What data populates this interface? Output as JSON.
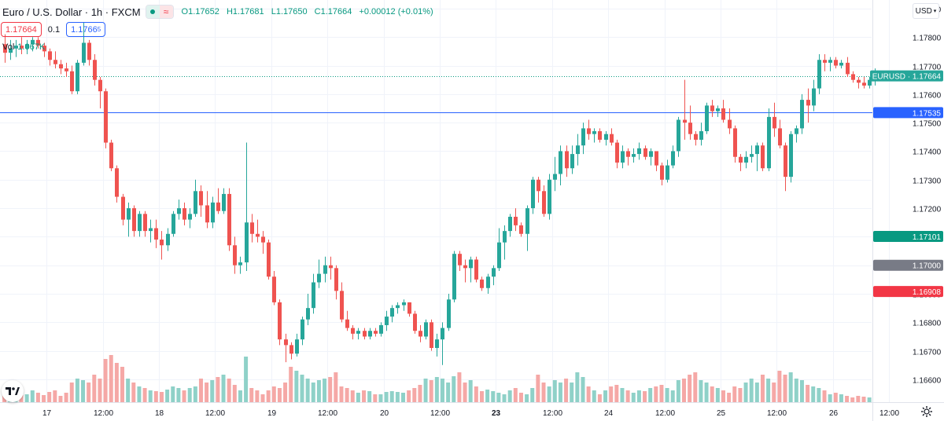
{
  "header": {
    "title": "Euro / U.S. Dollar · 1h · FXCM",
    "ohlc": {
      "open": "O1.17652",
      "high": "H1.17681",
      "low": "L1.17650",
      "close": "C1.17664",
      "change": "+0.00012 (+0.01%)"
    },
    "sell_price": "1.17664",
    "spread": "0.1",
    "buy_price_main": "1.1766",
    "buy_price_sup": "5",
    "volume_label": "Vol",
    "volume_value": "1.067K",
    "currency": "USD"
  },
  "colors": {
    "up": "#26a69a",
    "down": "#ef5350",
    "up_volume": "#8fd1c8",
    "down_volume": "#f5a8a6",
    "horizontal_line": "#2962ff",
    "current_price_line": "#089981",
    "grid": "#f0f3fa"
  },
  "price_labels": {
    "symbol_tag": "EURUSD · 1.17664",
    "line_price": "1.17535",
    "green_tag": "1.17101",
    "grey_tag": "1.17000",
    "red_tag": "1.16908"
  },
  "chart_data": {
    "type": "candlestick",
    "symbol": "EURUSD",
    "interval": "1h",
    "y_axis_ticks": [
      "1.17900",
      "1.17800",
      "1.17700",
      "1.17600",
      "1.17500",
      "1.17400",
      "1.17300",
      "1.17200",
      "1.17100",
      "1.17000",
      "1.16900",
      "1.16800",
      "1.16700",
      "1.16600"
    ],
    "ylim": [
      1.1652,
      1.1793
    ],
    "x_axis_ticks": [
      "17",
      "12:00",
      "18",
      "12:00",
      "19",
      "12:00",
      "20",
      "12:00",
      "23",
      "12:00",
      "24",
      "12:00",
      "25",
      "12:00",
      "26",
      "12:00"
    ],
    "x_tick_bar_index": [
      8,
      18,
      28,
      38,
      48,
      58,
      68,
      78,
      88,
      98,
      108,
      118,
      128,
      138,
      148,
      158
    ],
    "horizontal_line": 1.17535,
    "last_price": 1.17664,
    "candles_ohlc": [
      [
        1.17775,
        1.1781,
        1.1771,
        1.17745
      ],
      [
        1.17745,
        1.1779,
        1.1772,
        1.1776
      ],
      [
        1.1776,
        1.1779,
        1.1773,
        1.1777
      ],
      [
        1.1777,
        1.178,
        1.1774,
        1.1776
      ],
      [
        1.1776,
        1.1779,
        1.1774,
        1.17775
      ],
      [
        1.17775,
        1.178,
        1.1775,
        1.1779
      ],
      [
        1.1779,
        1.178,
        1.1776,
        1.1777
      ],
      [
        1.1777,
        1.1778,
        1.1773,
        1.1775
      ],
      [
        1.1775,
        1.1776,
        1.177,
        1.1772
      ],
      [
        1.1772,
        1.1775,
        1.1769,
        1.17705
      ],
      [
        1.17705,
        1.1772,
        1.1767,
        1.1769
      ],
      [
        1.1769,
        1.1771,
        1.1766,
        1.1768
      ],
      [
        1.1768,
        1.177,
        1.176,
        1.1761
      ],
      [
        1.1761,
        1.1772,
        1.176,
        1.1771
      ],
      [
        1.1771,
        1.1785,
        1.177,
        1.1778
      ],
      [
        1.1778,
        1.1779,
        1.177,
        1.1772
      ],
      [
        1.1772,
        1.1774,
        1.1763,
        1.1765
      ],
      [
        1.1765,
        1.1766,
        1.1755,
        1.1761
      ],
      [
        1.1761,
        1.1762,
        1.1741,
        1.1743
      ],
      [
        1.1743,
        1.1744,
        1.1733,
        1.1734
      ],
      [
        1.1734,
        1.1735,
        1.1722,
        1.1724
      ],
      [
        1.1724,
        1.1725,
        1.1714,
        1.1716
      ],
      [
        1.1716,
        1.1722,
        1.171,
        1.172
      ],
      [
        1.172,
        1.1721,
        1.171,
        1.1712
      ],
      [
        1.1712,
        1.1719,
        1.171,
        1.1718
      ],
      [
        1.1718,
        1.1719,
        1.171,
        1.1712
      ],
      [
        1.1712,
        1.1716,
        1.1708,
        1.1713
      ],
      [
        1.1713,
        1.1716,
        1.1706,
        1.1709
      ],
      [
        1.1709,
        1.1712,
        1.1702,
        1.1707
      ],
      [
        1.1707,
        1.1713,
        1.1705,
        1.1711
      ],
      [
        1.1711,
        1.1719,
        1.171,
        1.1718
      ],
      [
        1.1718,
        1.1723,
        1.1716,
        1.172
      ],
      [
        1.172,
        1.1722,
        1.1714,
        1.1716
      ],
      [
        1.1716,
        1.172,
        1.1713,
        1.1718
      ],
      [
        1.1718,
        1.173,
        1.1717,
        1.1726
      ],
      [
        1.1726,
        1.1728,
        1.1717,
        1.1721
      ],
      [
        1.1721,
        1.1726,
        1.1713,
        1.1715
      ],
      [
        1.1715,
        1.1724,
        1.1713,
        1.1722
      ],
      [
        1.1722,
        1.1727,
        1.1718,
        1.1719
      ],
      [
        1.1719,
        1.1727,
        1.1718,
        1.1725
      ],
      [
        1.1725,
        1.1727,
        1.1705,
        1.1707
      ],
      [
        1.1707,
        1.171,
        1.1697,
        1.17
      ],
      [
        1.17,
        1.1703,
        1.1697,
        1.1701
      ],
      [
        1.1701,
        1.1743,
        1.1698,
        1.1715
      ],
      [
        1.1715,
        1.1718,
        1.1708,
        1.1711
      ],
      [
        1.1711,
        1.1716,
        1.1708,
        1.171
      ],
      [
        1.171,
        1.1712,
        1.1704,
        1.1708
      ],
      [
        1.1708,
        1.1709,
        1.1695,
        1.1696
      ],
      [
        1.1696,
        1.1698,
        1.1686,
        1.1687
      ],
      [
        1.1687,
        1.1688,
        1.1672,
        1.1674
      ],
      [
        1.1674,
        1.1676,
        1.1666,
        1.1672
      ],
      [
        1.1672,
        1.1673,
        1.1667,
        1.1669
      ],
      [
        1.1669,
        1.1676,
        1.1668,
        1.1674
      ],
      [
        1.1674,
        1.1682,
        1.1672,
        1.1681
      ],
      [
        1.1681,
        1.169,
        1.1679,
        1.1685
      ],
      [
        1.1685,
        1.1697,
        1.1683,
        1.1694
      ],
      [
        1.1694,
        1.1702,
        1.1692,
        1.1697
      ],
      [
        1.1697,
        1.1703,
        1.1694,
        1.17
      ],
      [
        1.17,
        1.1703,
        1.1695,
        1.1699
      ],
      [
        1.1699,
        1.17,
        1.1688,
        1.1691
      ],
      [
        1.1691,
        1.1694,
        1.168,
        1.1681
      ],
      [
        1.1681,
        1.1684,
        1.1677,
        1.1678
      ],
      [
        1.1678,
        1.1679,
        1.1674,
        1.1676
      ],
      [
        1.1676,
        1.1678,
        1.1674,
        1.1677
      ],
      [
        1.1677,
        1.1678,
        1.1674,
        1.1675
      ],
      [
        1.1675,
        1.1678,
        1.1674,
        1.1677
      ],
      [
        1.1677,
        1.1678,
        1.1675,
        1.1676
      ],
      [
        1.1676,
        1.168,
        1.1675,
        1.1679
      ],
      [
        1.1679,
        1.1684,
        1.1677,
        1.1682
      ],
      [
        1.1682,
        1.1686,
        1.168,
        1.1685
      ],
      [
        1.1685,
        1.1687,
        1.1683,
        1.1686
      ],
      [
        1.1686,
        1.1688,
        1.1684,
        1.1687
      ],
      [
        1.1687,
        1.1687,
        1.1682,
        1.1683
      ],
      [
        1.1683,
        1.1684,
        1.1676,
        1.1677
      ],
      [
        1.1677,
        1.1679,
        1.1673,
        1.1675
      ],
      [
        1.1675,
        1.1681,
        1.1674,
        1.168
      ],
      [
        1.168,
        1.1681,
        1.167,
        1.1671
      ],
      [
        1.1671,
        1.1676,
        1.1668,
        1.1674
      ],
      [
        1.1674,
        1.168,
        1.1665,
        1.1678
      ],
      [
        1.1678,
        1.169,
        1.1677,
        1.1688
      ],
      [
        1.1688,
        1.1705,
        1.1687,
        1.1704
      ],
      [
        1.1704,
        1.1705,
        1.1698,
        1.17
      ],
      [
        1.17,
        1.1702,
        1.1694,
        1.1699
      ],
      [
        1.1699,
        1.1703,
        1.1694,
        1.1702
      ],
      [
        1.1702,
        1.1703,
        1.1694,
        1.1695
      ],
      [
        1.1695,
        1.1696,
        1.1691,
        1.1692
      ],
      [
        1.1692,
        1.1697,
        1.169,
        1.1696
      ],
      [
        1.1696,
        1.17,
        1.1693,
        1.1699
      ],
      [
        1.1699,
        1.1713,
        1.1698,
        1.1708
      ],
      [
        1.1708,
        1.1714,
        1.1702,
        1.1712
      ],
      [
        1.1712,
        1.1718,
        1.171,
        1.1717
      ],
      [
        1.1717,
        1.172,
        1.1712,
        1.1714
      ],
      [
        1.1714,
        1.1715,
        1.171,
        1.1711
      ],
      [
        1.1711,
        1.1721,
        1.1705,
        1.172
      ],
      [
        1.172,
        1.1731,
        1.1718,
        1.173
      ],
      [
        1.173,
        1.1731,
        1.1722,
        1.1726
      ],
      [
        1.1726,
        1.1728,
        1.1717,
        1.1718
      ],
      [
        1.1718,
        1.1732,
        1.1716,
        1.173
      ],
      [
        1.173,
        1.1738,
        1.1726,
        1.1732
      ],
      [
        1.1732,
        1.1742,
        1.1728,
        1.174
      ],
      [
        1.174,
        1.1742,
        1.1731,
        1.1734
      ],
      [
        1.1734,
        1.1742,
        1.1732,
        1.1739
      ],
      [
        1.1739,
        1.1746,
        1.1735,
        1.1742
      ],
      [
        1.1742,
        1.175,
        1.1739,
        1.1748
      ],
      [
        1.1748,
        1.1751,
        1.1744,
        1.1746
      ],
      [
        1.1746,
        1.1748,
        1.1743,
        1.1747
      ],
      [
        1.1747,
        1.1748,
        1.1743,
        1.1744
      ],
      [
        1.1744,
        1.1747,
        1.1742,
        1.1746
      ],
      [
        1.1746,
        1.1748,
        1.1742,
        1.1743
      ],
      [
        1.1743,
        1.1744,
        1.1734,
        1.1736
      ],
      [
        1.1736,
        1.1742,
        1.1734,
        1.174
      ],
      [
        1.174,
        1.1741,
        1.1735,
        1.1738
      ],
      [
        1.1738,
        1.1741,
        1.1736,
        1.1739
      ],
      [
        1.1739,
        1.1743,
        1.1737,
        1.1741
      ],
      [
        1.1741,
        1.1742,
        1.1737,
        1.1738
      ],
      [
        1.1738,
        1.1741,
        1.1735,
        1.174
      ],
      [
        1.174,
        1.174,
        1.1733,
        1.1735
      ],
      [
        1.1735,
        1.1736,
        1.1728,
        1.173
      ],
      [
        1.173,
        1.1737,
        1.1729,
        1.1735
      ],
      [
        1.1735,
        1.1742,
        1.1734,
        1.174
      ],
      [
        1.174,
        1.1752,
        1.1738,
        1.1751
      ],
      [
        1.1751,
        1.1765,
        1.1744,
        1.175
      ],
      [
        1.175,
        1.1756,
        1.1744,
        1.1746
      ],
      [
        1.1746,
        1.1747,
        1.1742,
        1.1744
      ],
      [
        1.1744,
        1.175,
        1.1742,
        1.1747
      ],
      [
        1.1747,
        1.1757,
        1.1746,
        1.1756
      ],
      [
        1.1756,
        1.1758,
        1.1752,
        1.1754
      ],
      [
        1.1754,
        1.1756,
        1.1752,
        1.1755
      ],
      [
        1.1755,
        1.1758,
        1.175,
        1.1751
      ],
      [
        1.1751,
        1.1755,
        1.1746,
        1.1748
      ],
      [
        1.1748,
        1.1749,
        1.1736,
        1.1738
      ],
      [
        1.1738,
        1.1739,
        1.1733,
        1.1736
      ],
      [
        1.1736,
        1.174,
        1.1734,
        1.1738
      ],
      [
        1.1738,
        1.1742,
        1.1736,
        1.1739
      ],
      [
        1.1739,
        1.1743,
        1.1733,
        1.1742
      ],
      [
        1.1742,
        1.1743,
        1.1733,
        1.1734
      ],
      [
        1.1734,
        1.1755,
        1.1733,
        1.1752
      ],
      [
        1.1752,
        1.1757,
        1.1745,
        1.1748
      ],
      [
        1.1748,
        1.1751,
        1.1741,
        1.1742
      ],
      [
        1.1742,
        1.1743,
        1.1726,
        1.1731
      ],
      [
        1.1731,
        1.1747,
        1.1729,
        1.1746
      ],
      [
        1.1746,
        1.1749,
        1.1743,
        1.1748
      ],
      [
        1.1748,
        1.176,
        1.1746,
        1.1758
      ],
      [
        1.1758,
        1.1762,
        1.175,
        1.1756
      ],
      [
        1.1756,
        1.1765,
        1.1754,
        1.1762
      ],
      [
        1.1762,
        1.1774,
        1.176,
        1.1772
      ],
      [
        1.1772,
        1.1774,
        1.1768,
        1.1771
      ],
      [
        1.1771,
        1.1773,
        1.1768,
        1.1772
      ],
      [
        1.1772,
        1.1773,
        1.1769,
        1.177
      ],
      [
        1.177,
        1.1772,
        1.1769,
        1.1771
      ],
      [
        1.1771,
        1.1773,
        1.1766,
        1.1767
      ],
      [
        1.1767,
        1.1768,
        1.1764,
        1.1765
      ],
      [
        1.1765,
        1.1766,
        1.1762,
        1.1764
      ],
      [
        1.1764,
        1.1766,
        1.1762,
        1.1763
      ],
      [
        1.1763,
        1.1766,
        1.1762,
        1.1765
      ],
      [
        1.1765,
        1.1769,
        1.1763,
        1.1765
      ],
      [
        1.17652,
        1.17681,
        1.1765,
        1.17664
      ]
    ],
    "volume": [
      0.12,
      0.05,
      0.07,
      0.09,
      0.1,
      0.15,
      0.12,
      0.09,
      0.13,
      0.15,
      0.08,
      0.12,
      0.25,
      0.3,
      0.28,
      0.25,
      0.35,
      0.3,
      0.55,
      0.6,
      0.5,
      0.45,
      0.3,
      0.25,
      0.2,
      0.18,
      0.15,
      0.14,
      0.13,
      0.16,
      0.2,
      0.18,
      0.15,
      0.18,
      0.2,
      0.3,
      0.25,
      0.28,
      0.32,
      0.35,
      0.3,
      0.22,
      0.15,
      0.58,
      0.18,
      0.15,
      0.1,
      0.15,
      0.2,
      0.18,
      0.25,
      0.45,
      0.4,
      0.35,
      0.3,
      0.25,
      0.28,
      0.3,
      0.32,
      0.38,
      0.2,
      0.18,
      0.15,
      0.12,
      0.15,
      0.14,
      0.1,
      0.1,
      0.13,
      0.14,
      0.13,
      0.12,
      0.15,
      0.18,
      0.22,
      0.3,
      0.28,
      0.32,
      0.3,
      0.25,
      0.33,
      0.38,
      0.25,
      0.28,
      0.2,
      0.14,
      0.16,
      0.14,
      0.12,
      0.1,
      0.15,
      0.18,
      0.12,
      0.1,
      0.18,
      0.35,
      0.25,
      0.2,
      0.28,
      0.25,
      0.3,
      0.25,
      0.38,
      0.32,
      0.2,
      0.15,
      0.1,
      0.15,
      0.2,
      0.22,
      0.18,
      0.15,
      0.12,
      0.15,
      0.14,
      0.18,
      0.2,
      0.22,
      0.18,
      0.15,
      0.28,
      0.3,
      0.35,
      0.38,
      0.28,
      0.25,
      0.2,
      0.18,
      0.15,
      0.12,
      0.2,
      0.18,
      0.25,
      0.3,
      0.25,
      0.35,
      0.3,
      0.25,
      0.4,
      0.35,
      0.38,
      0.3,
      0.28,
      0.22,
      0.2,
      0.18,
      0.15,
      0.1,
      0.12,
      0.1,
      0.08,
      0.06,
      0.08,
      0.07,
      0.06
    ]
  }
}
